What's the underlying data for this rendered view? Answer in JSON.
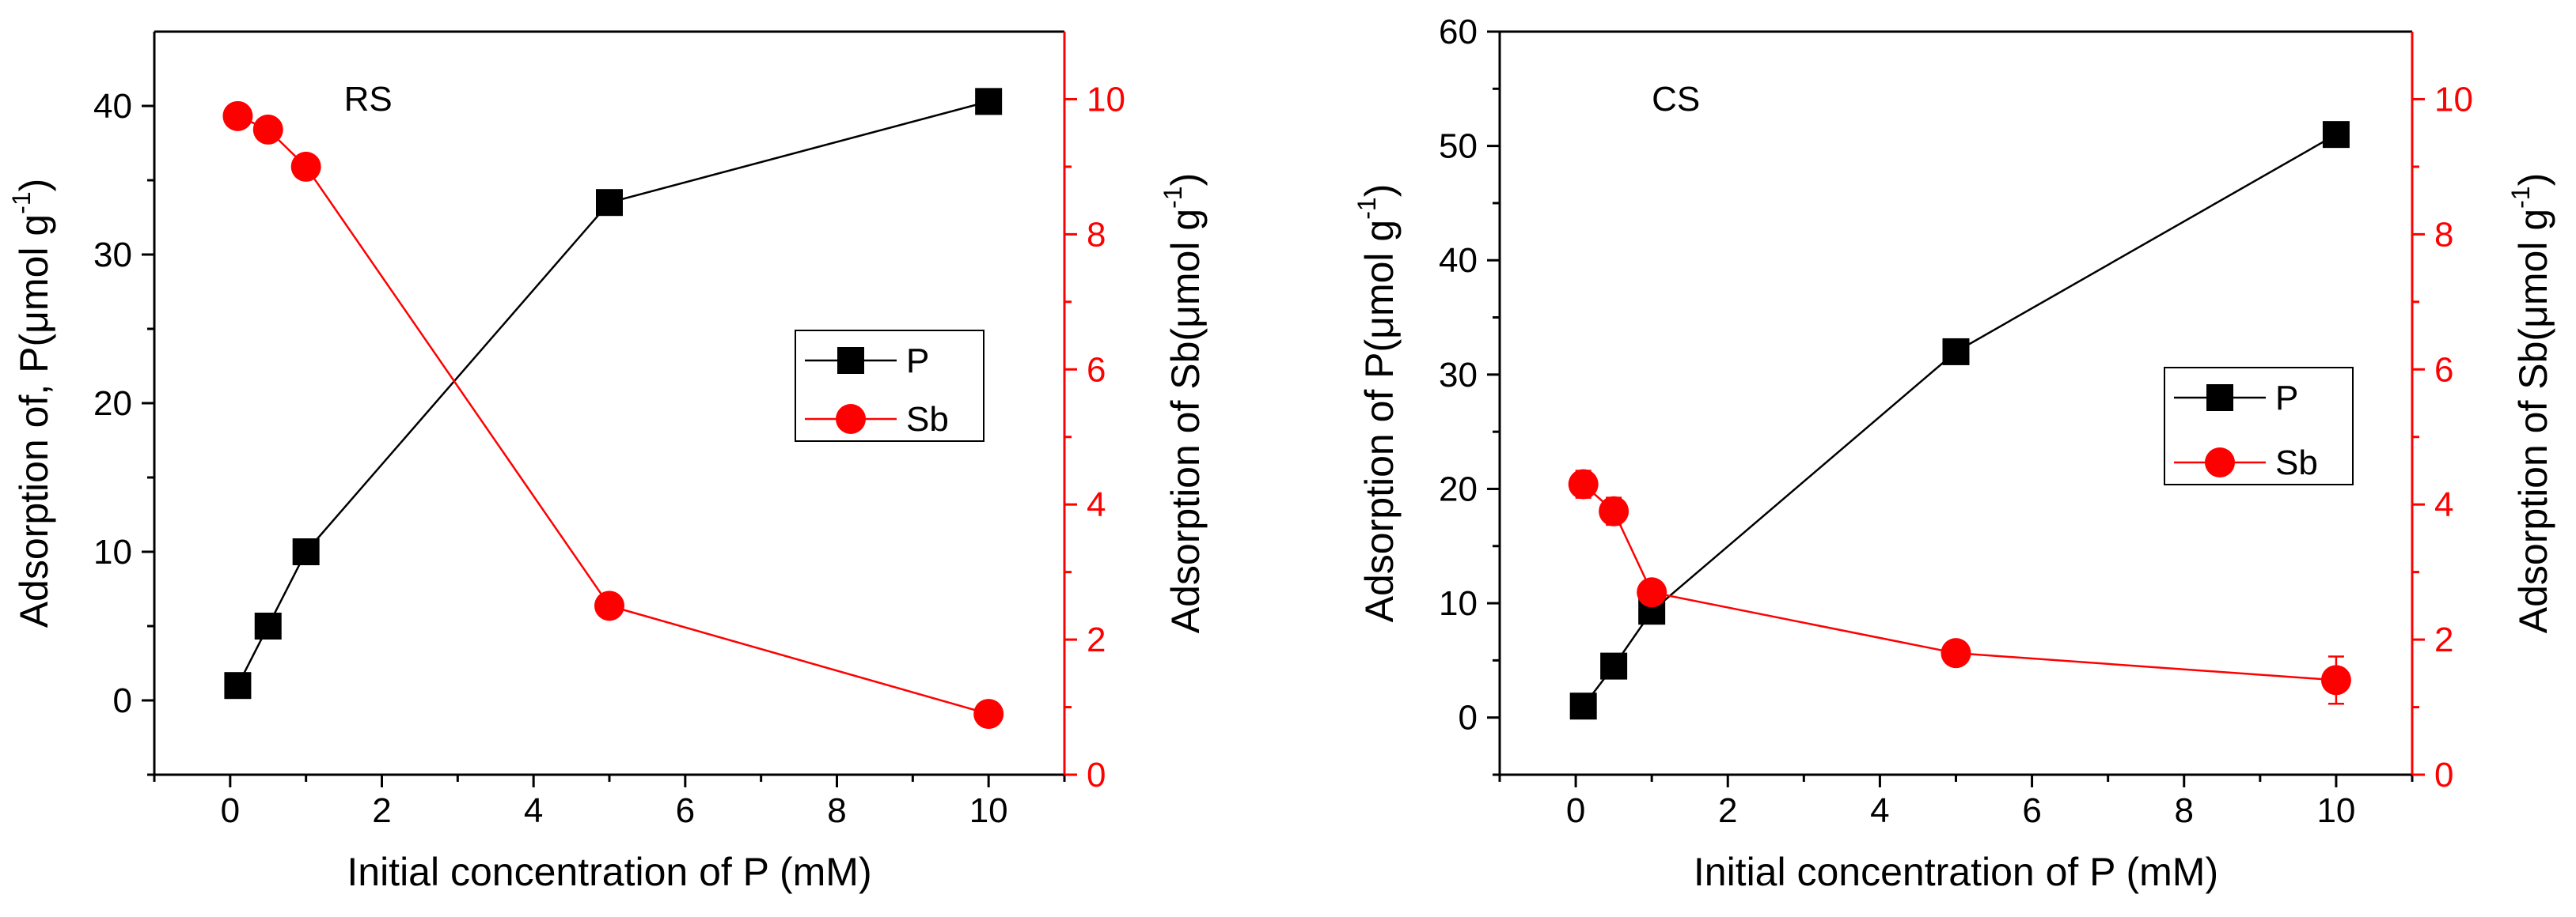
{
  "chart_data": [
    {
      "type": "line",
      "panel_label": "RS",
      "xlabel": "Initial concentration of P (mM)",
      "ylabel_left": "Adsorption of, P(μmol g",
      "ylabel_right": "Adsorption of Sb(μmol g",
      "ylabel_superscript": "-1",
      "ylabel_close": ")",
      "xlim": [
        -1,
        11
      ],
      "ylim_left": [
        -5,
        45
      ],
      "ylim_right": [
        0,
        11
      ],
      "xticks": [
        0,
        2,
        4,
        6,
        8,
        10
      ],
      "xtick_labels": [
        "0",
        "2",
        "4",
        "6",
        "8",
        "10"
      ],
      "yticks_left": [
        0,
        10,
        20,
        30,
        40
      ],
      "ytick_labels_left": [
        "0",
        "10",
        "20",
        "30",
        "40"
      ],
      "yticks_right": [
        0,
        2,
        4,
        6,
        8,
        10
      ],
      "ytick_labels_right": [
        "0",
        "2",
        "4",
        "6",
        "8",
        "10"
      ],
      "legend_position": "center-right",
      "series": [
        {
          "name": "P",
          "axis": "left",
          "color": "#000000",
          "marker": "square",
          "x": [
            0.1,
            0.5,
            1,
            5,
            10
          ],
          "y": [
            1.0,
            5.0,
            10.0,
            33.5,
            40.3
          ],
          "err": [
            0,
            0,
            0,
            0.8,
            0
          ]
        },
        {
          "name": "Sb",
          "axis": "right",
          "color": "#ff0000",
          "marker": "circle",
          "x": [
            0.1,
            0.5,
            1,
            5,
            10
          ],
          "y": [
            9.75,
            9.55,
            9.0,
            2.5,
            0.9
          ],
          "err": [
            0,
            0,
            0,
            0.15,
            0
          ]
        }
      ]
    },
    {
      "type": "line",
      "panel_label": "CS",
      "xlabel": "Initial concentration of P (mM)",
      "ylabel_left": "Adsorption of P(μmol g",
      "ylabel_right": "Adsorption of Sb(μmol g",
      "ylabel_superscript": "-1",
      "ylabel_close": ")",
      "xlim": [
        -1,
        11
      ],
      "ylim_left": [
        -5,
        60
      ],
      "ylim_right": [
        0,
        11
      ],
      "xticks": [
        0,
        2,
        4,
        6,
        8,
        10
      ],
      "xtick_labels": [
        "0",
        "2",
        "4",
        "6",
        "8",
        "10"
      ],
      "yticks_left": [
        0,
        10,
        20,
        30,
        40,
        50,
        60
      ],
      "ytick_labels_left": [
        "0",
        "10",
        "20",
        "30",
        "40",
        "50",
        "60"
      ],
      "yticks_right": [
        0,
        2,
        4,
        6,
        8,
        10
      ],
      "ytick_labels_right": [
        "0",
        "2",
        "4",
        "6",
        "8",
        "10"
      ],
      "legend_position": "center-right",
      "series": [
        {
          "name": "P",
          "axis": "left",
          "color": "#000000",
          "marker": "square",
          "x": [
            0.1,
            0.5,
            1,
            5,
            10
          ],
          "y": [
            1.0,
            4.5,
            9.3,
            32.0,
            51.0
          ],
          "err": [
            0,
            0,
            0,
            0,
            0
          ]
        },
        {
          "name": "Sb",
          "axis": "right",
          "color": "#ff0000",
          "marker": "circle",
          "x": [
            0.1,
            0.5,
            1,
            5,
            10
          ],
          "y": [
            4.3,
            3.9,
            2.7,
            1.8,
            1.4
          ],
          "err": [
            0.2,
            0.2,
            0.15,
            0,
            0.35
          ]
        }
      ]
    }
  ]
}
